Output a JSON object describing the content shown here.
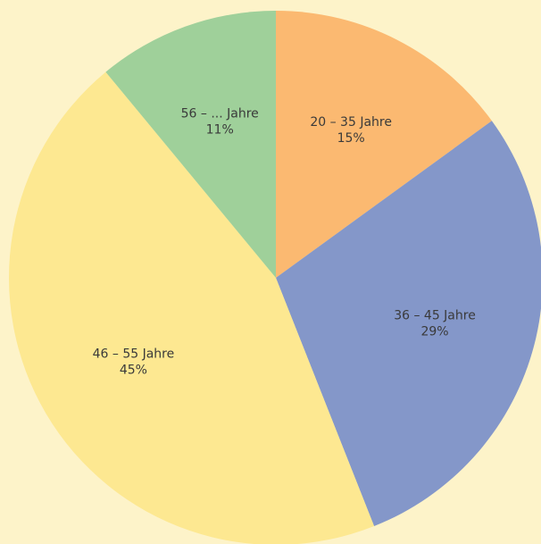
{
  "chart_data": {
    "type": "pie",
    "categories": [
      "20 – 35 Jahre",
      "36 – 45 Jahre",
      "46 – 55 Jahre",
      "56 – ... Jahre"
    ],
    "values": [
      15,
      29,
      45,
      11
    ],
    "value_labels": [
      "15%",
      "29%",
      "45%",
      "11%"
    ],
    "colors": [
      "#fbb971",
      "#8497c9",
      "#fde891",
      "#9fd09a"
    ]
  }
}
